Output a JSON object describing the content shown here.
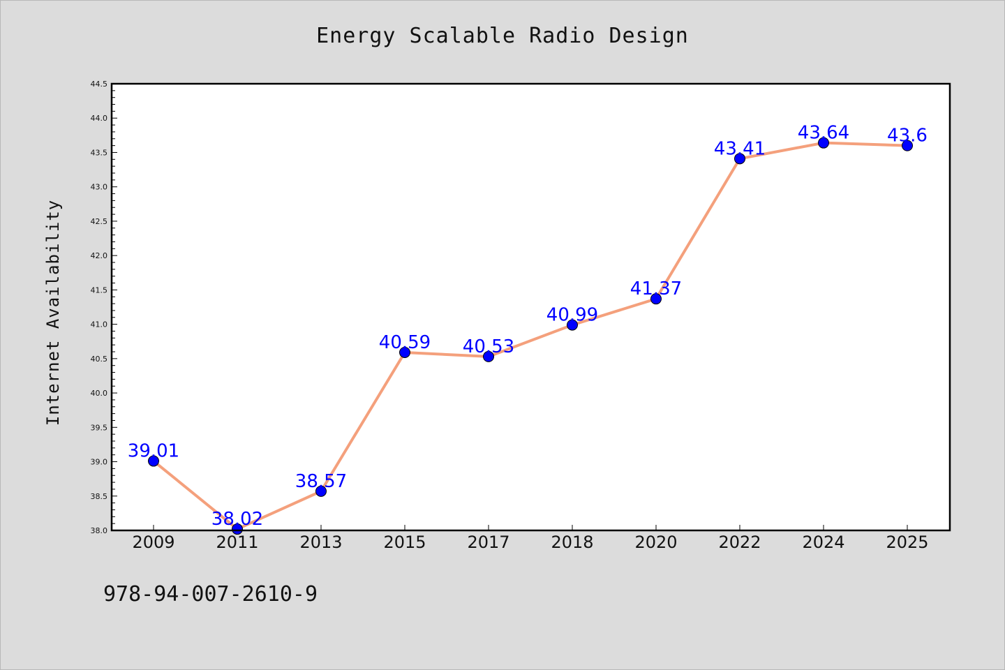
{
  "chart_data": {
    "type": "line",
    "title": "Energy Scalable Radio Design",
    "ylabel": "Internet Availability",
    "xlabel": "",
    "categories": [
      "2009",
      "2011",
      "2013",
      "2015",
      "2017",
      "2018",
      "2020",
      "2022",
      "2024",
      "2025"
    ],
    "series": [
      {
        "values": [
          39.01,
          38.02,
          38.57,
          40.59,
          40.53,
          40.99,
          41.37,
          43.41,
          43.64,
          43.6
        ],
        "data_labels": [
          "39.01",
          "38.02",
          "38.57",
          "40.59",
          "40.53",
          "40.99",
          "41.37",
          "43.41",
          "43.64",
          "43.6"
        ],
        "line_color": "#f4a07c",
        "marker_color": "#0000ff"
      }
    ],
    "ylim": [
      38.0,
      44.5
    ],
    "yticks": [
      "38.0",
      "38.5",
      "39.0",
      "39.5",
      "40.0",
      "40.5",
      "41.0",
      "41.5",
      "42.0",
      "42.5",
      "43.0",
      "43.5",
      "44.0",
      "44.5"
    ],
    "grid": false,
    "legend": "none"
  },
  "footer": {
    "code": "978-94-007-2610-9"
  },
  "colors": {
    "background": "#dcdcdc",
    "plot_background": "#ffffff",
    "line": "#f4a07c",
    "marker": "#0000ff",
    "label": "#0000ff"
  }
}
